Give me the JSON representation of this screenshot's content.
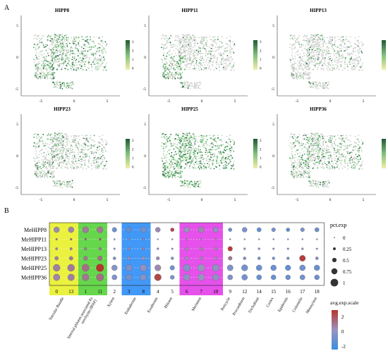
{
  "panel_a": {
    "label": "A",
    "x_ticks": [
      "-5",
      "0",
      "5"
    ],
    "y_ticks": [
      "5",
      "0",
      "-5"
    ],
    "plots": [
      {
        "title": "HIPP8",
        "colorbar_ticks": [
          "3",
          "2",
          "1",
          "0"
        ]
      },
      {
        "title": "HIPP11",
        "colorbar_ticks": [
          "3",
          "2",
          "1",
          "0"
        ]
      },
      {
        "title": "HIPP13",
        "colorbar_ticks": [
          "3",
          "2",
          "1",
          "0"
        ]
      },
      {
        "title": "HIPP23",
        "colorbar_ticks": [
          "3",
          "2",
          "1",
          "0"
        ]
      },
      {
        "title": "HIPP25",
        "colorbar_ticks": [
          "3",
          "2",
          "1",
          "0"
        ]
      },
      {
        "title": "HIPP36",
        "colorbar_ticks": [
          "3",
          "2",
          "1",
          "0"
        ]
      }
    ]
  },
  "panel_b": {
    "label": "B",
    "genes": [
      "MeHIPP8",
      "MeHIPP11",
      "MeHIPP13",
      "MeHIPP23",
      "MeHIPP25",
      "MeHIPP36"
    ],
    "clusters": [
      "0",
      "13",
      "1",
      "11",
      "2",
      "3",
      "8",
      "4",
      "5",
      "6",
      "7",
      "10",
      "9",
      "12",
      "14",
      "15",
      "16",
      "17",
      "18"
    ],
    "groups": [
      {
        "label": "Vascular Bundle",
        "color": "#e8ef2a"
      },
      {
        "label": "Internal phloem associated Parenchyma (IPAP)",
        "color": "#55d23a"
      },
      {
        "label": "Xylem",
        "color": "#ffffff"
      },
      {
        "label": "Endodermis",
        "color": "#2e8df5"
      },
      {
        "label": "Exodermis",
        "color": "#ffffff"
      },
      {
        "label": "Phloem",
        "color": "#ffffff"
      },
      {
        "label": "Meristem",
        "color": "#e23ee8"
      },
      {
        "label": "Pericycle",
        "color": "#ffffff"
      },
      {
        "label": "Procambium",
        "color": "#ffffff"
      },
      {
        "label": "Trichoblast",
        "color": "#ffffff"
      },
      {
        "label": "Cortex",
        "color": "#ffffff"
      },
      {
        "label": "Epidermis",
        "color": "#ffffff"
      },
      {
        "label": "Columella",
        "color": "#ffffff"
      },
      {
        "label": "Metaxylem",
        "color": "#ffffff"
      }
    ],
    "legend_size": {
      "title": "pct.exp",
      "labels": [
        "0",
        "0.25",
        "0.5",
        "0.75",
        "1"
      ]
    },
    "legend_color": {
      "title": "avg.exp.scale",
      "labels": [
        "2",
        "0",
        "-2"
      ],
      "high": "#b8342c",
      "mid": "#9a93c0",
      "low": "#3c8de0"
    },
    "dot_pct": [
      [
        0.7,
        0.72,
        0.78,
        0.8,
        0.55,
        0.7,
        0.72,
        0.6,
        0.4,
        0.7,
        0.7,
        0.62,
        0.4,
        0.6,
        0.5,
        0.45,
        0.4,
        0.45,
        0.5
      ],
      [
        0.12,
        0.14,
        0.15,
        0.18,
        0.08,
        0.1,
        0.15,
        0.05,
        0.05,
        0.12,
        0.1,
        0.1,
        0.05,
        0.05,
        0.05,
        0.06,
        0.05,
        0.05,
        0.05
      ],
      [
        0.2,
        0.22,
        0.25,
        0.28,
        0.12,
        0.2,
        0.22,
        0.15,
        0.1,
        0.3,
        0.32,
        0.28,
        0.55,
        0.15,
        0.15,
        0.12,
        0.12,
        0.15,
        0.1
      ],
      [
        0.4,
        0.42,
        0.48,
        0.55,
        0.3,
        0.35,
        0.4,
        0.35,
        0.25,
        0.35,
        0.32,
        0.3,
        0.45,
        0.3,
        0.28,
        0.25,
        0.25,
        0.75,
        0.3
      ],
      [
        0.9,
        0.92,
        0.95,
        1.0,
        0.7,
        0.85,
        0.88,
        0.78,
        0.55,
        0.92,
        0.95,
        0.9,
        0.75,
        0.8,
        0.72,
        0.7,
        0.68,
        0.72,
        0.7
      ],
      [
        0.85,
        0.86,
        0.9,
        0.95,
        0.62,
        0.8,
        0.82,
        0.88,
        0.48,
        0.85,
        0.88,
        0.82,
        0.62,
        0.72,
        0.62,
        0.6,
        0.58,
        0.62,
        0.6
      ]
    ],
    "dot_scale": [
      [
        0.2,
        0.3,
        0.5,
        0.6,
        -0.8,
        -1.2,
        -0.8,
        0.2,
        1.6,
        0.0,
        0.2,
        -0.2,
        -1.0,
        -0.6,
        -1.2,
        -0.8,
        -1.4,
        -0.6,
        -1.0
      ],
      [
        0.6,
        0.8,
        1.0,
        1.2,
        -0.2,
        0.0,
        0.3,
        0.0,
        -0.4,
        0.4,
        0.2,
        0.2,
        -0.6,
        -0.4,
        -0.8,
        -0.6,
        -0.8,
        -0.6,
        -0.4
      ],
      [
        0.2,
        0.4,
        0.5,
        0.6,
        -0.4,
        0.2,
        0.3,
        -0.2,
        -0.6,
        0.2,
        0.3,
        0.2,
        1.8,
        -0.2,
        -0.4,
        -0.6,
        -0.5,
        -0.2,
        -0.6
      ],
      [
        0.4,
        0.5,
        0.6,
        0.8,
        -0.4,
        -0.2,
        0.0,
        0.2,
        -0.6,
        0.0,
        0.2,
        0.0,
        0.6,
        -0.4,
        -0.6,
        -0.8,
        -0.6,
        1.8,
        -0.4
      ],
      [
        0.4,
        0.5,
        0.8,
        2.0,
        -0.4,
        -0.6,
        -0.2,
        0.2,
        -0.8,
        -0.4,
        0.0,
        -0.2,
        -0.6,
        -0.8,
        -1.0,
        -1.0,
        -1.2,
        -0.8,
        -1.0
      ],
      [
        0.3,
        0.4,
        0.6,
        0.8,
        -0.5,
        -0.8,
        -0.4,
        1.6,
        -0.6,
        -0.2,
        0.0,
        -0.2,
        -0.6,
        -0.8,
        -1.0,
        -1.0,
        -1.0,
        -0.8,
        -1.0
      ]
    ]
  }
}
